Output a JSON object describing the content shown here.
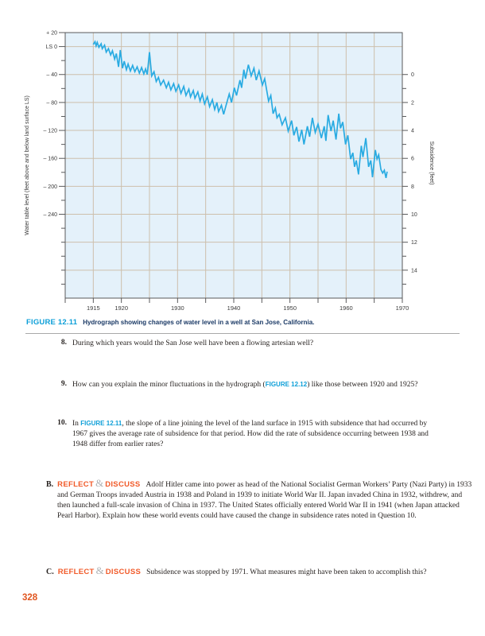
{
  "figure": {
    "label": "FIGURE 12.11",
    "caption": "Hydrograph showing changes of water level in a well at San Jose, California."
  },
  "questions": [
    {
      "num": "8.",
      "pre": "During which years would the San Jose well have been a flowing artesian well?",
      "figref": "",
      "post": ""
    },
    {
      "num": "9.",
      "pre": "How can you explain the minor fluctuations in the hydrograph (",
      "figref": "FIGURE 12.12",
      "post": ") like those between 1920 and 1925?"
    },
    {
      "num": "10.",
      "pre": "In ",
      "figref": "FIGURE 12.11",
      "post": ", the slope of a line joining the level of the land surface in 1915 with subsidence that had occurred by 1967 gives the average rate of subsidence for that period. How did the rate of subsidence occurring between 1938 and 1948 differ from earlier rates?"
    }
  ],
  "reflect_sections": [
    {
      "letter": "B.",
      "reflect": "REFLECT",
      "amp": "&",
      "discuss": "DISCUSS",
      "text": "Adolf Hitler came into power as head of the National Socialist German Workers’ Party (Nazi Party) in 1933 and German Troops invaded Austria in 1938 and Poland in 1939 to initiate World War II. Japan invaded China in 1932, withdrew, and then launched a full-scale invasion of China in 1937. The United States officially entered World War II in 1941 (when Japan attacked Pearl Harbor). Explain how these world events could have caused the change in subsidence rates noted in Question 10."
    },
    {
      "letter": "C.",
      "reflect": "REFLECT",
      "amp": "&",
      "discuss": "DISCUSS",
      "text": "Subsidence was stopped by 1971. What measures might have been taken to accomplish this?"
    }
  ],
  "page_number": "328",
  "colors": {
    "line": "#29abe2",
    "plot_bg": "#e4f1fa",
    "grid": "#cdbfac",
    "border": "#58595b",
    "tick_text": "#3a3a3a",
    "figure_ref": "#0d9fd8",
    "caption_navy": "#1b3a66",
    "accent_orange": "#f15a29"
  },
  "chart_data": {
    "type": "line",
    "title": "",
    "x_axis": {
      "min": 1910,
      "max": 1970,
      "grid_step": 5,
      "tick_labels": [
        1915,
        1920,
        1930,
        1940,
        1950,
        1960,
        1970
      ]
    },
    "y_left": {
      "label": "Water table level (feet above and below land surface LS)",
      "min": -360,
      "max": 20,
      "grid_step": 40,
      "minor_step": 20,
      "tick_values": [
        20,
        0,
        -40,
        -80,
        -120,
        -160,
        -200,
        -240
      ],
      "tick_labels": [
        "+ 20",
        "LS 0",
        "– 40",
        "– 80",
        "– 120",
        "– 160",
        "– 200",
        "– 240"
      ]
    },
    "y_right": {
      "label": "Subsidence (feet)",
      "tick_values": [
        0,
        2,
        4,
        6,
        8,
        10,
        12,
        14
      ],
      "minor_values": [
        1,
        3,
        5,
        7,
        9,
        11,
        13,
        15
      ],
      "left_feet_at_zero": -40,
      "left_feet_per_unit": -20
    },
    "series": [
      {
        "name": "water-level",
        "points": [
          [
            1915.0,
            3
          ],
          [
            1915.3,
            7
          ],
          [
            1915.5,
            1
          ],
          [
            1915.7,
            6
          ],
          [
            1916.0,
            -1
          ],
          [
            1916.4,
            4
          ],
          [
            1916.6,
            -3
          ],
          [
            1917.0,
            2
          ],
          [
            1917.3,
            -8
          ],
          [
            1917.7,
            -3
          ],
          [
            1918.1,
            -12
          ],
          [
            1918.4,
            -6
          ],
          [
            1918.8,
            -18
          ],
          [
            1919.1,
            -10
          ],
          [
            1919.5,
            -29
          ],
          [
            1919.8,
            -5
          ],
          [
            1920.2,
            -31
          ],
          [
            1920.5,
            -21
          ],
          [
            1920.9,
            -33
          ],
          [
            1921.2,
            -25
          ],
          [
            1921.6,
            -35
          ],
          [
            1922.0,
            -27
          ],
          [
            1922.4,
            -36
          ],
          [
            1922.8,
            -29
          ],
          [
            1923.2,
            -38
          ],
          [
            1923.6,
            -30
          ],
          [
            1924.0,
            -39
          ],
          [
            1924.3,
            -32
          ],
          [
            1924.6,
            -40
          ],
          [
            1925.0,
            -8
          ],
          [
            1925.4,
            -42
          ],
          [
            1925.8,
            -36
          ],
          [
            1926.2,
            -50
          ],
          [
            1926.6,
            -44
          ],
          [
            1927.0,
            -55
          ],
          [
            1927.5,
            -48
          ],
          [
            1928.0,
            -59
          ],
          [
            1928.4,
            -51
          ],
          [
            1928.8,
            -62
          ],
          [
            1929.3,
            -53
          ],
          [
            1929.7,
            -64
          ],
          [
            1930.2,
            -55
          ],
          [
            1930.6,
            -67
          ],
          [
            1931.1,
            -57
          ],
          [
            1931.5,
            -70
          ],
          [
            1932.0,
            -61
          ],
          [
            1932.3,
            -72
          ],
          [
            1932.8,
            -63
          ],
          [
            1933.1,
            -74
          ],
          [
            1933.6,
            -65
          ],
          [
            1934.0,
            -78
          ],
          [
            1934.4,
            -68
          ],
          [
            1934.8,
            -82
          ],
          [
            1935.3,
            -72
          ],
          [
            1935.7,
            -86
          ],
          [
            1936.2,
            -76
          ],
          [
            1936.6,
            -90
          ],
          [
            1937.0,
            -80
          ],
          [
            1937.3,
            -93
          ],
          [
            1937.8,
            -84
          ],
          [
            1938.2,
            -97
          ],
          [
            1938.6,
            -85
          ],
          [
            1939.2,
            -68
          ],
          [
            1939.6,
            -80
          ],
          [
            1940.1,
            -59
          ],
          [
            1940.5,
            -70
          ],
          [
            1941.1,
            -48
          ],
          [
            1941.4,
            -59
          ],
          [
            1941.8,
            -33
          ],
          [
            1942.1,
            -46
          ],
          [
            1942.6,
            -26
          ],
          [
            1943.1,
            -42
          ],
          [
            1943.6,
            -31
          ],
          [
            1944.0,
            -48
          ],
          [
            1944.5,
            -35
          ],
          [
            1945.1,
            -55
          ],
          [
            1945.5,
            -46
          ],
          [
            1946.2,
            -78
          ],
          [
            1946.6,
            -70
          ],
          [
            1947.0,
            -96
          ],
          [
            1947.4,
            -88
          ],
          [
            1947.7,
            -102
          ],
          [
            1948.1,
            -97
          ],
          [
            1948.6,
            -112
          ],
          [
            1949.2,
            -102
          ],
          [
            1949.7,
            -121
          ],
          [
            1950.3,
            -106
          ],
          [
            1950.7,
            -127
          ],
          [
            1951.2,
            -115
          ],
          [
            1951.6,
            -136
          ],
          [
            1952.1,
            -119
          ],
          [
            1952.5,
            -140
          ],
          [
            1953.1,
            -114
          ],
          [
            1953.5,
            -129
          ],
          [
            1954.0,
            -102
          ],
          [
            1954.5,
            -123
          ],
          [
            1955.0,
            -111
          ],
          [
            1955.6,
            -131
          ],
          [
            1956.1,
            -114
          ],
          [
            1956.4,
            -135
          ],
          [
            1956.8,
            -98
          ],
          [
            1957.3,
            -121
          ],
          [
            1957.7,
            -106
          ],
          [
            1958.2,
            -133
          ],
          [
            1958.7,
            -96
          ],
          [
            1959.0,
            -117
          ],
          [
            1959.4,
            -108
          ],
          [
            1959.9,
            -140
          ],
          [
            1960.3,
            -127
          ],
          [
            1960.8,
            -161
          ],
          [
            1961.2,
            -152
          ],
          [
            1961.5,
            -172
          ],
          [
            1961.8,
            -163
          ],
          [
            1962.2,
            -183
          ],
          [
            1962.7,
            -142
          ],
          [
            1963.0,
            -158
          ],
          [
            1963.5,
            -131
          ],
          [
            1964.0,
            -172
          ],
          [
            1964.4,
            -163
          ],
          [
            1964.7,
            -187
          ],
          [
            1965.2,
            -148
          ],
          [
            1965.5,
            -161
          ],
          [
            1965.8,
            -155
          ],
          [
            1966.2,
            -176
          ],
          [
            1966.5,
            -181
          ],
          [
            1966.8,
            -177
          ],
          [
            1967.1,
            -188
          ],
          [
            1967.3,
            -179
          ]
        ]
      }
    ]
  }
}
